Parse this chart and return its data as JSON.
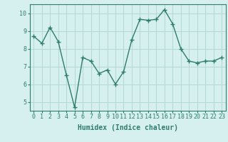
{
  "x": [
    0,
    1,
    2,
    3,
    4,
    5,
    6,
    7,
    8,
    9,
    10,
    11,
    12,
    13,
    14,
    15,
    16,
    17,
    18,
    19,
    20,
    21,
    22,
    23
  ],
  "y": [
    8.7,
    8.3,
    9.2,
    8.4,
    6.5,
    4.7,
    7.5,
    7.3,
    6.6,
    6.8,
    6.0,
    6.7,
    8.5,
    9.65,
    9.6,
    9.65,
    10.2,
    9.4,
    8.0,
    7.3,
    7.2,
    7.3,
    7.3,
    7.5
  ],
  "line_color": "#2e7d6e",
  "bg_color": "#d6f0ef",
  "grid_color": "#b5d8d4",
  "xlabel": "Humidex (Indice chaleur)",
  "xlim": [
    -0.5,
    23.5
  ],
  "ylim": [
    4.5,
    10.5
  ],
  "yticks": [
    5,
    6,
    7,
    8,
    9,
    10
  ],
  "xticks": [
    0,
    1,
    2,
    3,
    4,
    5,
    6,
    7,
    8,
    9,
    10,
    11,
    12,
    13,
    14,
    15,
    16,
    17,
    18,
    19,
    20,
    21,
    22,
    23
  ],
  "marker": "+",
  "linewidth": 1.0,
  "markersize": 4,
  "markeredgewidth": 1.0,
  "label_fontsize": 7,
  "tick_fontsize": 6
}
